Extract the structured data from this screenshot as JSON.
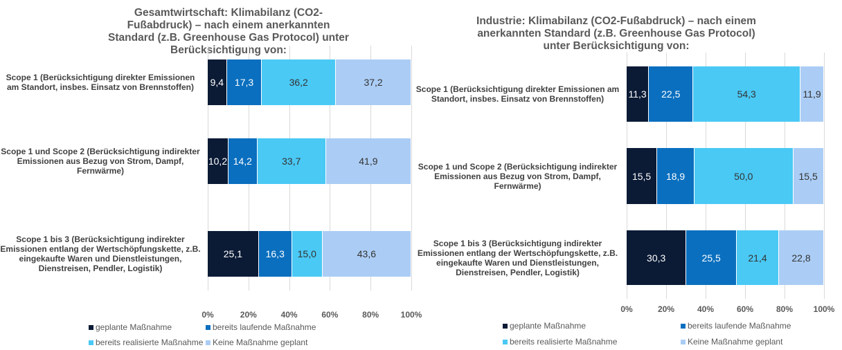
{
  "chart_data": [
    {
      "type": "bar",
      "orientation": "horizontal",
      "stacked": true,
      "title": "Gesamtwirtschaft: Klimabilanz (CO2-Fußabdruck) – nach einem anerkannten Standard (z.B. Greenhouse Gas Protocol) unter Berücksichtigung von:",
      "categories": [
        "Scope 1 (Berücksichtigung direkter Emissionen am Standort, insbes. Einsatz von Brennstoffen)",
        "Scope 1 und Scope 2 (Berücksichtigung indirekter Emissionen aus Bezug von Strom, Dampf, Fernwärme)",
        "Scope 1 bis 3 (Berücksichtigung indirekter Emissionen entlang der Wertschöpfungskette, z.B. eingekaufte Waren und Dienstleistungen, Dienstreisen, Pendler, Logistik)"
      ],
      "series": [
        {
          "name": "geplante Maßnahme",
          "color": "#0b1b36",
          "values": [
            9.4,
            10.2,
            25.1
          ],
          "value_labels": [
            "9,4",
            "10,2",
            "25,1"
          ]
        },
        {
          "name": "bereits laufende Maßnahme",
          "color": "#0a6fbf",
          "values": [
            17.3,
            14.2,
            16.3
          ],
          "value_labels": [
            "17,3",
            "14,2",
            "16,3"
          ]
        },
        {
          "name": "bereits realisierte Maßnahme",
          "color": "#4ac9f5",
          "values": [
            36.2,
            33.7,
            15.0
          ],
          "value_labels": [
            "36,2",
            "33,7",
            "15,0"
          ]
        },
        {
          "name": "Keine Maßnahme geplant",
          "color": "#abcdf5",
          "values": [
            37.2,
            41.9,
            43.6
          ],
          "value_labels": [
            "37,2",
            "41,9",
            "43,6"
          ]
        }
      ],
      "xlim": [
        0,
        100
      ],
      "xticks": [
        {
          "value": 0,
          "label": "0%"
        },
        {
          "value": 20,
          "label": "20%"
        },
        {
          "value": 40,
          "label": "40%"
        },
        {
          "value": 60,
          "label": "60%"
        },
        {
          "value": 80,
          "label": "80%"
        },
        {
          "value": 100,
          "label": "100%"
        }
      ],
      "grid": true
    },
    {
      "type": "bar",
      "orientation": "horizontal",
      "stacked": true,
      "title": "Industrie: Klimabilanz (CO2-Fußabdruck) – nach einem anerkannten Standard (z.B. Greenhouse Gas Protocol) unter Berücksichtigung von:",
      "categories": [
        "Scope 1 (Berücksichtigung direkter Emissionen am Standort, insbes. Einsatz von Brennstoffen)",
        "Scope 1 und Scope 2 (Berücksichtigung indirekter Emissionen aus Bezug von Strom, Dampf, Fernwärme)",
        "Scope 1 bis 3 (Berücksichtigung indirekter Emissionen entlang der Wertschöpfungskette, z.B. eingekaufte Waren und Dienstleistungen, Dienstreisen, Pendler, Logistik)"
      ],
      "series": [
        {
          "name": "geplante Maßnahme",
          "color": "#0b1b36",
          "values": [
            11.3,
            15.5,
            30.3
          ],
          "value_labels": [
            "11,3",
            "15,5",
            "30,3"
          ]
        },
        {
          "name": "bereits laufende Maßnahme",
          "color": "#0a6fbf",
          "values": [
            22.5,
            18.9,
            25.5
          ],
          "value_labels": [
            "22,5",
            "18,9",
            "25,5"
          ]
        },
        {
          "name": "bereits realisierte Maßnahme",
          "color": "#4ac9f5",
          "values": [
            54.3,
            50.0,
            21.4
          ],
          "value_labels": [
            "54,3",
            "50,0",
            "21,4"
          ]
        },
        {
          "name": "Keine Maßnahme geplant",
          "color": "#abcdf5",
          "values": [
            11.9,
            15.5,
            22.8
          ],
          "value_labels": [
            "11,9",
            "15,5",
            "22,8"
          ]
        }
      ],
      "xlim": [
        0,
        100
      ],
      "xticks": [
        {
          "value": 0,
          "label": "0%"
        },
        {
          "value": 20,
          "label": "20%"
        },
        {
          "value": 40,
          "label": "40%"
        },
        {
          "value": 60,
          "label": "60%"
        },
        {
          "value": 80,
          "label": "80%"
        },
        {
          "value": 100,
          "label": "100%"
        }
      ],
      "grid": true
    }
  ]
}
